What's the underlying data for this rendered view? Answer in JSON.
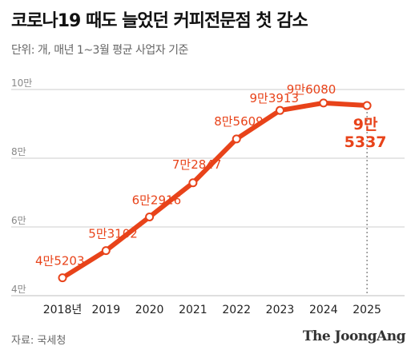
{
  "header": {
    "title": "코로나19 때도 늘었던 커피전문점 첫 감소",
    "subtitle": "단위: 개, 매년 1~3월 평균 사업자 기준"
  },
  "footer": {
    "source": "자료: 국세청",
    "brand": "The JoongAng"
  },
  "colors": {
    "line": "#e8431a",
    "label": "#e8431a",
    "grid": "#cccccc",
    "axis_text": "#666666"
  },
  "chart_data": {
    "type": "line",
    "title": "코로나19 때도 늘었던 커피전문점 첫 감소",
    "subtitle": "단위: 개, 매년 1~3월 평균 사업자 기준",
    "categories": [
      "2018년",
      "2019",
      "2020",
      "2021",
      "2022",
      "2023",
      "2024",
      "2025"
    ],
    "values": [
      45203,
      53102,
      62916,
      72847,
      85609,
      93913,
      96080,
      95337
    ],
    "data_labels": [
      "4만5203",
      "5만3102",
      "6만2916",
      "7만2847",
      "8만5609",
      "9만3913",
      "9만6080",
      "9만\n5337"
    ],
    "highlight_index": 7,
    "yticks": [
      40000,
      60000,
      80000,
      100000
    ],
    "ytick_labels": [
      "4만",
      "6만",
      "8만",
      "10만"
    ],
    "ylim": [
      40000,
      100000
    ],
    "grid": true,
    "legend": "none"
  }
}
